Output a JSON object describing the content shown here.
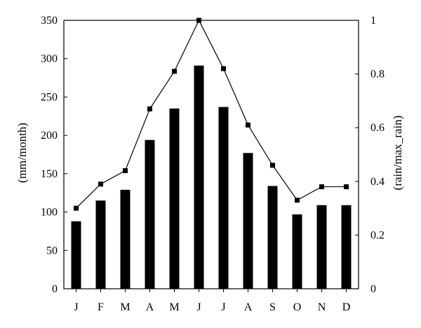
{
  "chart_data": {
    "type": "bar",
    "categories": [
      "J",
      "F",
      "M",
      "A",
      "M",
      "J",
      "J",
      "A",
      "S",
      "O",
      "N",
      "D"
    ],
    "series": [
      {
        "type": "bar",
        "axis": "left",
        "color": "#000000",
        "values": [
          88,
          115,
          129,
          194,
          235,
          291,
          237,
          177,
          134,
          97,
          109,
          109
        ]
      },
      {
        "type": "line",
        "axis": "right",
        "color": "#000000",
        "marker": "square",
        "values": [
          0.3,
          0.39,
          0.44,
          0.67,
          0.81,
          1.0,
          0.82,
          0.61,
          0.46,
          0.33,
          0.38,
          0.38
        ]
      }
    ],
    "ylabel": "(mm/month)",
    "y2label": "(rain/max_rain)",
    "ylim": [
      0,
      350
    ],
    "y2lim": [
      0,
      1
    ],
    "yticks": [
      "0",
      "50",
      "100",
      "150",
      "200",
      "250",
      "300",
      "350"
    ],
    "y2ticks": [
      "0",
      "0.2",
      "0.4",
      "0.6",
      "0.8",
      "1"
    ],
    "grid": false,
    "legend": "none"
  }
}
